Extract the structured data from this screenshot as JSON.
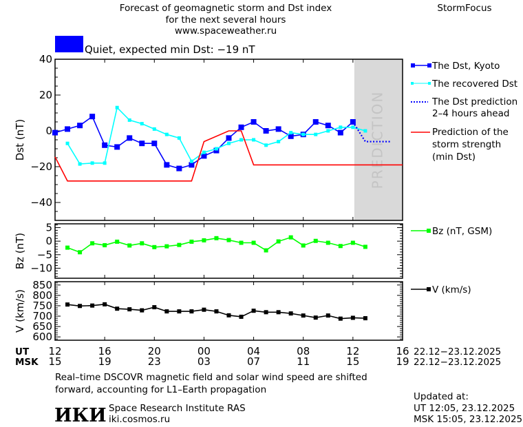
{
  "header": {
    "title_lines": [
      "Forecast of geomagnetic storm and Dst index",
      "for the next several hours",
      "www.spaceweather.ru"
    ],
    "brand": "StormFocus",
    "status_color": "#0000ff",
    "status_text": "Quiet, expected min Dst: −19 nT"
  },
  "legend": {
    "kyoto": "The Dst, Kyoto",
    "recovered": "The recovered Dst",
    "prediction_lines": [
      "The Dst prediction",
      "2–4 hours ahead"
    ],
    "strength_lines": [
      "Prediction of the",
      "storm strength",
      "(min Dst)"
    ],
    "bz": "Bz (nT, GSM)",
    "v": "V (km/s)"
  },
  "prediction_zone_label": "PREDICTION",
  "time_axis": {
    "ut_label": "UT",
    "msk_label": "MSK",
    "ut_ticks": [
      "12",
      "16",
      "20",
      "00",
      "04",
      "08",
      "12",
      "16"
    ],
    "msk_ticks": [
      "15",
      "19",
      "23",
      "03",
      "07",
      "11",
      "15",
      "19"
    ],
    "date_range_ut": "22.12−23.12.2025",
    "date_range_msk": "22.12−23.12.2025"
  },
  "footer": {
    "note_lines": [
      "Real–time DSCOVR magnetic field and solar wind speed are shifted",
      "forward, accounting for L1–Earth propagation"
    ],
    "logo_text": "ИКИ",
    "institute": "Space Research Institute RAS",
    "website": "iki.cosmos.ru",
    "updated_label": "Updated at:",
    "updated_ut": "UT   12:05, 23.12.2025",
    "updated_msk": "MSK 15:05, 23.12.2025"
  },
  "chart_data": [
    {
      "type": "line",
      "ylabel": "Dst (nT)",
      "xlim": [
        "22.12 12:00",
        "23.12 16:00"
      ],
      "prediction_from": "23.12 12:00",
      "ylim": [
        -50,
        40
      ],
      "yticks": [
        40,
        20,
        0,
        -20,
        -40
      ],
      "grid": false,
      "legend": "right",
      "series": [
        {
          "name": "The Dst, Kyoto",
          "color": "#0000ff",
          "start": "22.12 12:00",
          "values": [
            -1,
            1,
            3,
            8,
            -8,
            -9,
            -4,
            -7,
            -7,
            -19,
            -21,
            -19,
            -14,
            -11,
            -4,
            2,
            5,
            0,
            1,
            -3,
            -2,
            5,
            3,
            -1,
            5
          ]
        },
        {
          "name": "The recovered Dst",
          "color": "#00ffff",
          "start": "22.12 13:00",
          "values": [
            -7,
            -18.5,
            -18,
            -18,
            13,
            6,
            4,
            1,
            -2,
            -4,
            -17,
            -12,
            -10,
            -7,
            -5,
            -5,
            -8,
            -6,
            -1,
            -2,
            -2,
            0,
            2,
            2,
            0
          ]
        },
        {
          "name": "The Dst prediction 2-4 hours ahead",
          "color": "#0000ff",
          "points": [
            [
              "23.12 12:00",
              5
            ],
            [
              "23.12 13:00",
              -6
            ],
            [
              "23.12 15:00",
              -6
            ]
          ]
        },
        {
          "name": "Prediction of the storm strength (min Dst)",
          "color": "#ff0000",
          "points": [
            [
              "22.12 12:00",
              -14.5
            ],
            [
              "22.12 13:00",
              -28
            ],
            [
              "22.12 23:00",
              -28
            ],
            [
              "23.12 00:00",
              -6
            ],
            [
              "23.12 02:00",
              0
            ],
            [
              "23.12 03:00",
              0
            ],
            [
              "23.12 04:00",
              -19
            ],
            [
              "23.12 16:00",
              -19
            ]
          ]
        }
      ]
    },
    {
      "type": "line",
      "ylabel": "Bz (nT)",
      "ylim": [
        -13.7,
        6.4
      ],
      "yticks": [
        5,
        0,
        -5,
        -10
      ],
      "series": [
        {
          "name": "Bz (nT, GSM)",
          "color": "#00ff00",
          "start": "22.12 13:00",
          "values": [
            -2.4,
            -4.1,
            -0.8,
            -1.5,
            -0.2,
            -1.6,
            -0.8,
            -2.2,
            -1.9,
            -1.4,
            -0.2,
            0.3,
            1.1,
            0.4,
            -0.6,
            -0.6,
            -3.4,
            -0.1,
            1.4,
            -1.6,
            0.1,
            -0.6,
            -1.8,
            -0.6,
            -2.1
          ]
        }
      ]
    },
    {
      "type": "line",
      "ylabel": "V (km/s)",
      "ylim": [
        584,
        866
      ],
      "yticks": [
        850,
        800,
        750,
        700,
        650,
        600
      ],
      "series": [
        {
          "name": "V (km/s)",
          "color": "#000000",
          "start": "22.12 13:00",
          "values": [
            756,
            749,
            751,
            757,
            736,
            733,
            728,
            743,
            723,
            723,
            723,
            731,
            723,
            704,
            697,
            726,
            719,
            719,
            713,
            703,
            693,
            703,
            688,
            692,
            690
          ]
        }
      ]
    }
  ]
}
